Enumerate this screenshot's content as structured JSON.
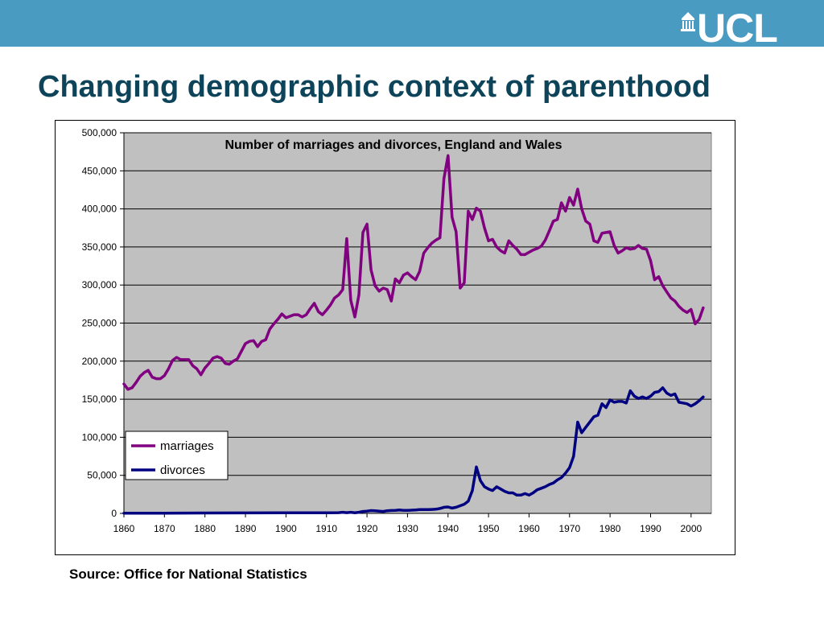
{
  "header": {
    "bar_color": "#4a9bc1",
    "logo_text": "UCL"
  },
  "slide": {
    "title": "Changing demographic context of parenthood",
    "title_color": "#0d4459",
    "source": "Source: Office for National Statistics"
  },
  "chart_data": {
    "type": "line",
    "title": "Number of marriages and divorces, England and Wales",
    "xlabel": "",
    "ylabel": "",
    "xlim": [
      1860,
      2005
    ],
    "ylim": [
      0,
      500000
    ],
    "x_ticks": [
      "1860",
      "1870",
      "1880",
      "1890",
      "1900",
      "1910",
      "1920",
      "1930",
      "1940",
      "1950",
      "1960",
      "1970",
      "1980",
      "1990",
      "2000"
    ],
    "y_ticks": [
      "0",
      "50,000",
      "100,000",
      "150,000",
      "200,000",
      "250,000",
      "300,000",
      "350,000",
      "400,000",
      "450,000",
      "500,000"
    ],
    "grid": true,
    "plot_background": "#c0c0c0",
    "legend_position": "lower-left",
    "series": [
      {
        "name": "marriages",
        "color": "#800080",
        "points": [
          [
            1860,
            170000
          ],
          [
            1861,
            163000
          ],
          [
            1862,
            165000
          ],
          [
            1863,
            172000
          ],
          [
            1864,
            180000
          ],
          [
            1865,
            185000
          ],
          [
            1866,
            188000
          ],
          [
            1867,
            179000
          ],
          [
            1868,
            177000
          ],
          [
            1869,
            177000
          ],
          [
            1870,
            181000
          ],
          [
            1871,
            190000
          ],
          [
            1872,
            201000
          ],
          [
            1873,
            205000
          ],
          [
            1874,
            202000
          ],
          [
            1875,
            202000
          ],
          [
            1876,
            202000
          ],
          [
            1877,
            194000
          ],
          [
            1878,
            190000
          ],
          [
            1879,
            182000
          ],
          [
            1880,
            191000
          ],
          [
            1881,
            197000
          ],
          [
            1882,
            204000
          ],
          [
            1883,
            206000
          ],
          [
            1884,
            204000
          ],
          [
            1885,
            197000
          ],
          [
            1886,
            196000
          ],
          [
            1887,
            200000
          ],
          [
            1888,
            203000
          ],
          [
            1889,
            213000
          ],
          [
            1890,
            223000
          ],
          [
            1891,
            226000
          ],
          [
            1892,
            227000
          ],
          [
            1893,
            219000
          ],
          [
            1894,
            226000
          ],
          [
            1895,
            228000
          ],
          [
            1896,
            242000
          ],
          [
            1897,
            249000
          ],
          [
            1898,
            255000
          ],
          [
            1899,
            262000
          ],
          [
            1900,
            257000
          ],
          [
            1901,
            259000
          ],
          [
            1902,
            261000
          ],
          [
            1903,
            261000
          ],
          [
            1904,
            258000
          ],
          [
            1905,
            261000
          ],
          [
            1906,
            269000
          ],
          [
            1907,
            276000
          ],
          [
            1908,
            265000
          ],
          [
            1909,
            261000
          ],
          [
            1910,
            267000
          ],
          [
            1911,
            274000
          ],
          [
            1912,
            283000
          ],
          [
            1913,
            287000
          ],
          [
            1914,
            294000
          ],
          [
            1915,
            361000
          ],
          [
            1916,
            280000
          ],
          [
            1917,
            258000
          ],
          [
            1918,
            287000
          ],
          [
            1919,
            369000
          ],
          [
            1920,
            380000
          ],
          [
            1921,
            320000
          ],
          [
            1922,
            299000
          ],
          [
            1923,
            292000
          ],
          [
            1924,
            296000
          ],
          [
            1925,
            294000
          ],
          [
            1926,
            279000
          ],
          [
            1927,
            308000
          ],
          [
            1928,
            303000
          ],
          [
            1929,
            313000
          ],
          [
            1930,
            316000
          ],
          [
            1931,
            311000
          ],
          [
            1932,
            307000
          ],
          [
            1933,
            318000
          ],
          [
            1934,
            342000
          ],
          [
            1935,
            349000
          ],
          [
            1936,
            355000
          ],
          [
            1937,
            359000
          ],
          [
            1938,
            362000
          ],
          [
            1939,
            440000
          ],
          [
            1940,
            470000
          ],
          [
            1941,
            389000
          ],
          [
            1942,
            370000
          ],
          [
            1943,
            296000
          ],
          [
            1944,
            303000
          ],
          [
            1945,
            397000
          ],
          [
            1946,
            386000
          ],
          [
            1947,
            401000
          ],
          [
            1948,
            397000
          ],
          [
            1949,
            375000
          ],
          [
            1950,
            358000
          ],
          [
            1951,
            360000
          ],
          [
            1952,
            350000
          ],
          [
            1953,
            345000
          ],
          [
            1954,
            342000
          ],
          [
            1955,
            358000
          ],
          [
            1956,
            352000
          ],
          [
            1957,
            347000
          ],
          [
            1958,
            340000
          ],
          [
            1959,
            340000
          ],
          [
            1960,
            343000
          ],
          [
            1961,
            346000
          ],
          [
            1962,
            348000
          ],
          [
            1963,
            351000
          ],
          [
            1964,
            359000
          ],
          [
            1965,
            371000
          ],
          [
            1966,
            384000
          ],
          [
            1967,
            386000
          ],
          [
            1968,
            408000
          ],
          [
            1969,
            397000
          ],
          [
            1970,
            415000
          ],
          [
            1971,
            405000
          ],
          [
            1972,
            426000
          ],
          [
            1973,
            400000
          ],
          [
            1974,
            384000
          ],
          [
            1975,
            380000
          ],
          [
            1976,
            358000
          ],
          [
            1977,
            356000
          ],
          [
            1978,
            368000
          ],
          [
            1979,
            369000
          ],
          [
            1980,
            370000
          ],
          [
            1981,
            352000
          ],
          [
            1982,
            342000
          ],
          [
            1983,
            345000
          ],
          [
            1984,
            349000
          ],
          [
            1985,
            347000
          ],
          [
            1986,
            348000
          ],
          [
            1987,
            352000
          ],
          [
            1988,
            348000
          ],
          [
            1989,
            347000
          ],
          [
            1990,
            332000
          ],
          [
            1991,
            307000
          ],
          [
            1992,
            311000
          ],
          [
            1993,
            299000
          ],
          [
            1994,
            291000
          ],
          [
            1995,
            283000
          ],
          [
            1996,
            279000
          ],
          [
            1997,
            272000
          ],
          [
            1998,
            267000
          ],
          [
            1999,
            264000
          ],
          [
            2000,
            268000
          ],
          [
            2001,
            249000
          ],
          [
            2002,
            255000
          ],
          [
            2003,
            270000
          ]
        ]
      },
      {
        "name": "divorces",
        "color": "#000080",
        "points": [
          [
            1860,
            200
          ],
          [
            1870,
            300
          ],
          [
            1880,
            500
          ],
          [
            1890,
            600
          ],
          [
            1900,
            700
          ],
          [
            1910,
            800
          ],
          [
            1913,
            1000
          ],
          [
            1914,
            1500
          ],
          [
            1915,
            900
          ],
          [
            1916,
            1500
          ],
          [
            1917,
            800
          ],
          [
            1918,
            1500
          ],
          [
            1919,
            2500
          ],
          [
            1920,
            3000
          ],
          [
            1921,
            3700
          ],
          [
            1922,
            3500
          ],
          [
            1923,
            3000
          ],
          [
            1924,
            2500
          ],
          [
            1925,
            3500
          ],
          [
            1926,
            3800
          ],
          [
            1927,
            4000
          ],
          [
            1928,
            4500
          ],
          [
            1929,
            4000
          ],
          [
            1930,
            3900
          ],
          [
            1931,
            4200
          ],
          [
            1932,
            4500
          ],
          [
            1933,
            5000
          ],
          [
            1934,
            5000
          ],
          [
            1935,
            5000
          ],
          [
            1936,
            5200
          ],
          [
            1937,
            5500
          ],
          [
            1938,
            6500
          ],
          [
            1939,
            8000
          ],
          [
            1940,
            8500
          ],
          [
            1941,
            7000
          ],
          [
            1942,
            8000
          ],
          [
            1943,
            10000
          ],
          [
            1944,
            12000
          ],
          [
            1945,
            16000
          ],
          [
            1946,
            30000
          ],
          [
            1947,
            61000
          ],
          [
            1948,
            43000
          ],
          [
            1949,
            35000
          ],
          [
            1950,
            32000
          ],
          [
            1951,
            30000
          ],
          [
            1952,
            35000
          ],
          [
            1953,
            32000
          ],
          [
            1954,
            29000
          ],
          [
            1955,
            27000
          ],
          [
            1956,
            27000
          ],
          [
            1957,
            24000
          ],
          [
            1958,
            24000
          ],
          [
            1959,
            26000
          ],
          [
            1960,
            24000
          ],
          [
            1961,
            27000
          ],
          [
            1962,
            31000
          ],
          [
            1963,
            33000
          ],
          [
            1964,
            35000
          ],
          [
            1965,
            38000
          ],
          [
            1966,
            40000
          ],
          [
            1967,
            44000
          ],
          [
            1968,
            47000
          ],
          [
            1969,
            53000
          ],
          [
            1970,
            60000
          ],
          [
            1971,
            75000
          ],
          [
            1972,
            120000
          ],
          [
            1973,
            106000
          ],
          [
            1974,
            113000
          ],
          [
            1975,
            120000
          ],
          [
            1976,
            127000
          ],
          [
            1977,
            129000
          ],
          [
            1978,
            144000
          ],
          [
            1979,
            139000
          ],
          [
            1980,
            149000
          ],
          [
            1981,
            146000
          ],
          [
            1982,
            147000
          ],
          [
            1983,
            147000
          ],
          [
            1984,
            145000
          ],
          [
            1985,
            161000
          ],
          [
            1986,
            154000
          ],
          [
            1987,
            151000
          ],
          [
            1988,
            153000
          ],
          [
            1989,
            151000
          ],
          [
            1990,
            154000
          ],
          [
            1991,
            159000
          ],
          [
            1992,
            160000
          ],
          [
            1993,
            165000
          ],
          [
            1994,
            158000
          ],
          [
            1995,
            155000
          ],
          [
            1996,
            157000
          ],
          [
            1997,
            146000
          ],
          [
            1998,
            145000
          ],
          [
            1999,
            144000
          ],
          [
            2000,
            141000
          ],
          [
            2001,
            144000
          ],
          [
            2002,
            148000
          ],
          [
            2003,
            153000
          ]
        ]
      }
    ]
  }
}
